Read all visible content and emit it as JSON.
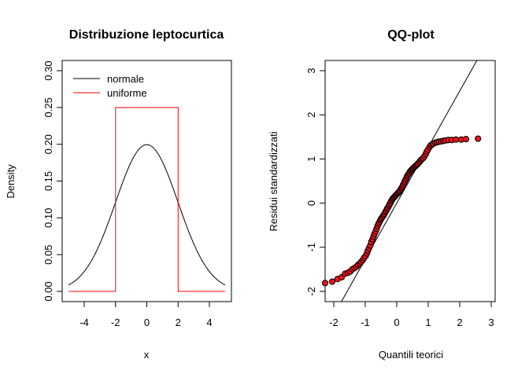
{
  "chart_data": [
    {
      "type": "line",
      "title": "Distribuzione leptocurtica",
      "xlabel": "x",
      "ylabel": "Density",
      "xlim": [
        -5,
        5
      ],
      "ylim": [
        0,
        0.3
      ],
      "x_ticks": [
        -4,
        -2,
        0,
        2,
        4
      ],
      "x_tick_labels": [
        "-4",
        "-2",
        "0",
        "2",
        "4"
      ],
      "y_ticks": [
        0,
        0.05,
        0.1,
        0.15,
        0.2,
        0.25,
        0.3
      ],
      "y_tick_labels": [
        "0.00",
        "0.05",
        "0.10",
        "0.15",
        "0.20",
        "0.25",
        "0.30"
      ],
      "legend": {
        "placement": "top-left",
        "entries": [
          {
            "label": "normale",
            "color": "#000000"
          },
          {
            "label": "uniforme",
            "color": "#ff0000"
          }
        ]
      },
      "series": [
        {
          "name": "normale",
          "color": "#000000",
          "x": [
            -5,
            -4.5,
            -4,
            -3.5,
            -3,
            -2.5,
            -2,
            -1.5,
            -1,
            -0.5,
            0,
            0.5,
            1,
            1.5,
            2,
            2.5,
            3,
            3.5,
            4,
            4.5,
            5
          ],
          "y": [
            0.0088,
            0.0162,
            0.027,
            0.0411,
            0.0648,
            0.0913,
            0.121,
            0.1506,
            0.176,
            0.1934,
            0.1995,
            0.1934,
            0.176,
            0.1506,
            0.121,
            0.0913,
            0.0648,
            0.0411,
            0.027,
            0.0162,
            0.0088
          ]
        },
        {
          "name": "uniforme",
          "color": "#ff0000",
          "x": [
            -5,
            -2,
            -2,
            2,
            2,
            5
          ],
          "y": [
            0,
            0,
            0.25,
            0.25,
            0,
            0
          ]
        }
      ],
      "grid": false
    },
    {
      "type": "scatter",
      "title": "QQ-plot",
      "xlabel": "Quantili teorici",
      "ylabel": "Residui  standardizzati",
      "xlim": [
        -2.2,
        3.2
      ],
      "ylim": [
        -2.2,
        3.2
      ],
      "x_ticks": [
        -2,
        -1,
        0,
        1,
        2,
        3
      ],
      "x_tick_labels": [
        "-2",
        "-1",
        "0",
        "1",
        "2",
        "3"
      ],
      "y_ticks": [
        -2,
        -1,
        0,
        1,
        2,
        3
      ],
      "y_tick_labels": [
        "-2",
        "-1",
        "0",
        "1",
        "2",
        "3"
      ],
      "reference_line": {
        "intercept": 0,
        "slope": 1.27,
        "color": "#000000"
      },
      "point_fill": "#e8141c",
      "point_stroke": "#000000",
      "grid": false,
      "points": [
        [
          -2.33,
          -1.81
        ],
        [
          -2.05,
          -1.78
        ],
        [
          -1.88,
          -1.72
        ],
        [
          -1.75,
          -1.68
        ],
        [
          -1.64,
          -1.6
        ],
        [
          -1.55,
          -1.58
        ],
        [
          -1.48,
          -1.55
        ],
        [
          -1.41,
          -1.5
        ],
        [
          -1.34,
          -1.47
        ],
        [
          -1.28,
          -1.44
        ],
        [
          -1.23,
          -1.4
        ],
        [
          -1.17,
          -1.37
        ],
        [
          -1.13,
          -1.33
        ],
        [
          -1.08,
          -1.29
        ],
        [
          -1.04,
          -1.24
        ],
        [
          -0.99,
          -1.2
        ],
        [
          -0.95,
          -1.14
        ],
        [
          -0.92,
          -1.08
        ],
        [
          -0.88,
          -1.02
        ],
        [
          -0.84,
          -0.96
        ],
        [
          -0.81,
          -0.88
        ],
        [
          -0.77,
          -0.82
        ],
        [
          -0.74,
          -0.76
        ],
        [
          -0.71,
          -0.7
        ],
        [
          -0.67,
          -0.64
        ],
        [
          -0.64,
          -0.58
        ],
        [
          -0.61,
          -0.52
        ],
        [
          -0.58,
          -0.47
        ],
        [
          -0.55,
          -0.43
        ],
        [
          -0.52,
          -0.39
        ],
        [
          -0.5,
          -0.36
        ],
        [
          -0.47,
          -0.33
        ],
        [
          -0.44,
          -0.3
        ],
        [
          -0.41,
          -0.27
        ],
        [
          -0.39,
          -0.24
        ],
        [
          -0.36,
          -0.2
        ],
        [
          -0.33,
          -0.17
        ],
        [
          -0.31,
          -0.13
        ],
        [
          -0.28,
          -0.1
        ],
        [
          -0.25,
          -0.06
        ],
        [
          -0.23,
          -0.03
        ],
        [
          -0.2,
          0.0
        ],
        [
          -0.18,
          0.04
        ],
        [
          -0.15,
          0.07
        ],
        [
          -0.13,
          0.1
        ],
        [
          -0.1,
          0.12
        ],
        [
          -0.08,
          0.14
        ],
        [
          -0.05,
          0.16
        ],
        [
          -0.03,
          0.18
        ],
        [
          0.0,
          0.2
        ],
        [
          0.03,
          0.22
        ],
        [
          0.05,
          0.24
        ],
        [
          0.08,
          0.26
        ],
        [
          0.1,
          0.28
        ],
        [
          0.13,
          0.31
        ],
        [
          0.15,
          0.34
        ],
        [
          0.18,
          0.37
        ],
        [
          0.2,
          0.41
        ],
        [
          0.23,
          0.45
        ],
        [
          0.25,
          0.49
        ],
        [
          0.28,
          0.53
        ],
        [
          0.31,
          0.57
        ],
        [
          0.33,
          0.61
        ],
        [
          0.36,
          0.64
        ],
        [
          0.39,
          0.67
        ],
        [
          0.41,
          0.7
        ],
        [
          0.44,
          0.73
        ],
        [
          0.47,
          0.75
        ],
        [
          0.5,
          0.77
        ],
        [
          0.52,
          0.79
        ],
        [
          0.55,
          0.81
        ],
        [
          0.58,
          0.83
        ],
        [
          0.61,
          0.85
        ],
        [
          0.64,
          0.87
        ],
        [
          0.67,
          0.89
        ],
        [
          0.71,
          0.92
        ],
        [
          0.74,
          0.95
        ],
        [
          0.77,
          0.98
        ],
        [
          0.81,
          1.0
        ],
        [
          0.84,
          1.02
        ],
        [
          0.88,
          1.06
        ],
        [
          0.92,
          1.11
        ],
        [
          0.95,
          1.16
        ],
        [
          0.99,
          1.21
        ],
        [
          1.04,
          1.27
        ],
        [
          1.08,
          1.31
        ],
        [
          1.13,
          1.33
        ],
        [
          1.17,
          1.35
        ],
        [
          1.23,
          1.37
        ],
        [
          1.28,
          1.38
        ],
        [
          1.34,
          1.39
        ],
        [
          1.41,
          1.4
        ],
        [
          1.48,
          1.41
        ],
        [
          1.55,
          1.42
        ],
        [
          1.64,
          1.43
        ],
        [
          1.75,
          1.43
        ],
        [
          1.88,
          1.44
        ],
        [
          2.05,
          1.44
        ],
        [
          2.2,
          1.45
        ],
        [
          2.58,
          1.46
        ]
      ]
    }
  ]
}
